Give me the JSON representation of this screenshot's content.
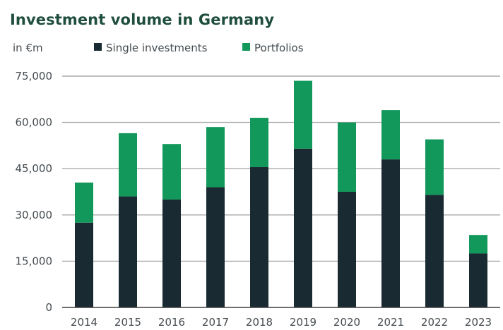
{
  "colors": {
    "title": "#1f4e3d",
    "single": "#1a2a33",
    "portfolio": "#12985a",
    "grid": "#a9a9a9",
    "axis": "#3f3f3f",
    "text": "#444b50"
  },
  "chart_data": {
    "type": "bar",
    "stacked": true,
    "title": "Investment volume in Germany",
    "unit_label": "in €m",
    "xlabel": "",
    "ylabel": "",
    "categories": [
      "2014",
      "2015",
      "2016",
      "2017",
      "2018",
      "2019",
      "2020",
      "2021",
      "2022",
      "2023"
    ],
    "series": [
      {
        "name": "Single investments",
        "color": "#1a2a33",
        "values": [
          27500,
          36000,
          35000,
          39000,
          45500,
          51500,
          37500,
          48000,
          36500,
          17500
        ]
      },
      {
        "name": "Portfolios",
        "color": "#12985a",
        "values": [
          13000,
          20500,
          18000,
          19500,
          16000,
          22000,
          22500,
          16000,
          18000,
          6000
        ]
      }
    ],
    "ylim": [
      0,
      75000
    ],
    "y_ticks": [
      "0",
      "15,000",
      "30,000",
      "45,000",
      "60,000",
      "75,000"
    ],
    "y_tick_values": [
      0,
      15000,
      30000,
      45000,
      60000,
      75000
    ],
    "grid": true,
    "legend_position": "top"
  }
}
